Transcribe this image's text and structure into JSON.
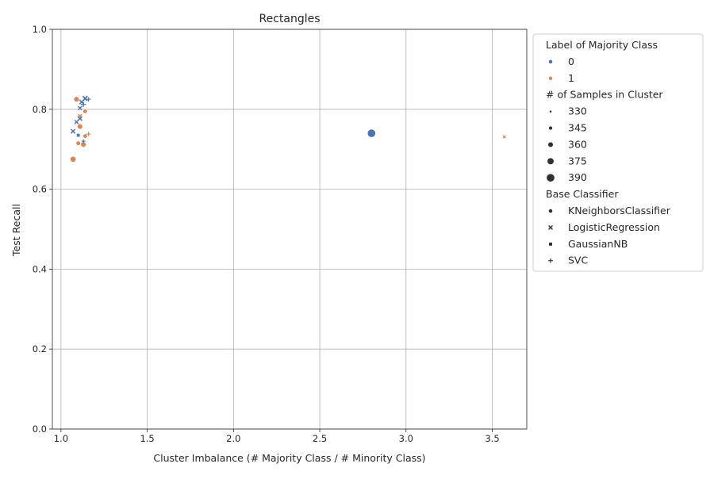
{
  "chart_data": {
    "type": "scatter",
    "title": "Rectangles",
    "xlabel": "Cluster Imbalance (# Majority Class / # Minority Class)",
    "ylabel": "Test Recall",
    "xlim": [
      0.95,
      3.7
    ],
    "ylim": [
      0.0,
      1.0
    ],
    "xticks": [
      "1.0",
      "1.5",
      "2.0",
      "2.5",
      "3.0",
      "3.5"
    ],
    "yticks": [
      "0.0",
      "0.2",
      "0.4",
      "0.6",
      "0.8",
      "1.0"
    ],
    "grid": true,
    "legend_position": "outside-right",
    "colors": {
      "class_0": "#4c72b0",
      "class_1": "#dd8452"
    },
    "legend": {
      "hue_title": "Label of Majority Class",
      "hue_items": [
        {
          "label": "0",
          "color": "#4c72b0"
        },
        {
          "label": "1",
          "color": "#dd8452"
        }
      ],
      "size_title": "# of Samples in Cluster",
      "size_items": [
        "330",
        "345",
        "360",
        "375",
        "390"
      ],
      "style_title": "Base Classifier",
      "style_items": [
        {
          "label": "KNeighborsClassifier",
          "marker": "circle"
        },
        {
          "label": "LogisticRegression",
          "marker": "x"
        },
        {
          "label": "GaussianNB",
          "marker": "square"
        },
        {
          "label": "SVC",
          "marker": "plus"
        }
      ]
    },
    "points": [
      {
        "x": 2.8,
        "y": 0.74,
        "cls": 0,
        "n": 390,
        "clf": "KNeighborsClassifier"
      },
      {
        "x": 3.57,
        "y": 0.731,
        "cls": 1,
        "n": 330,
        "clf": "LogisticRegression"
      },
      {
        "x": 1.09,
        "y": 0.825,
        "cls": 1,
        "n": 360,
        "clf": "KNeighborsClassifier"
      },
      {
        "x": 1.14,
        "y": 0.795,
        "cls": 1,
        "n": 350,
        "clf": "KNeighborsClassifier"
      },
      {
        "x": 1.11,
        "y": 0.757,
        "cls": 1,
        "n": 360,
        "clf": "KNeighborsClassifier"
      },
      {
        "x": 1.14,
        "y": 0.733,
        "cls": 1,
        "n": 350,
        "clf": "KNeighborsClassifier"
      },
      {
        "x": 1.1,
        "y": 0.715,
        "cls": 1,
        "n": 350,
        "clf": "KNeighborsClassifier"
      },
      {
        "x": 1.13,
        "y": 0.712,
        "cls": 1,
        "n": 360,
        "clf": "KNeighborsClassifier"
      },
      {
        "x": 1.07,
        "y": 0.675,
        "cls": 1,
        "n": 365,
        "clf": "KNeighborsClassifier"
      },
      {
        "x": 1.16,
        "y": 0.738,
        "cls": 1,
        "n": 345,
        "clf": "SVC"
      },
      {
        "x": 1.11,
        "y": 0.783,
        "cls": 1,
        "n": 345,
        "clf": "LogisticRegression"
      },
      {
        "x": 1.14,
        "y": 0.827,
        "cls": 0,
        "n": 355,
        "clf": "LogisticRegression"
      },
      {
        "x": 1.16,
        "y": 0.825,
        "cls": 0,
        "n": 345,
        "clf": "SVC"
      },
      {
        "x": 1.12,
        "y": 0.818,
        "cls": 0,
        "n": 350,
        "clf": "LogisticRegression"
      },
      {
        "x": 1.13,
        "y": 0.812,
        "cls": 0,
        "n": 350,
        "clf": "SVC"
      },
      {
        "x": 1.11,
        "y": 0.803,
        "cls": 0,
        "n": 345,
        "clf": "LogisticRegression"
      },
      {
        "x": 1.11,
        "y": 0.777,
        "cls": 0,
        "n": 350,
        "clf": "LogisticRegression"
      },
      {
        "x": 1.09,
        "y": 0.768,
        "cls": 0,
        "n": 345,
        "clf": "LogisticRegression"
      },
      {
        "x": 1.07,
        "y": 0.745,
        "cls": 0,
        "n": 350,
        "clf": "LogisticRegression"
      },
      {
        "x": 1.1,
        "y": 0.735,
        "cls": 0,
        "n": 345,
        "clf": "GaussianNB"
      },
      {
        "x": 1.13,
        "y": 0.72,
        "cls": 0,
        "n": 340,
        "clf": "SVC"
      }
    ]
  }
}
